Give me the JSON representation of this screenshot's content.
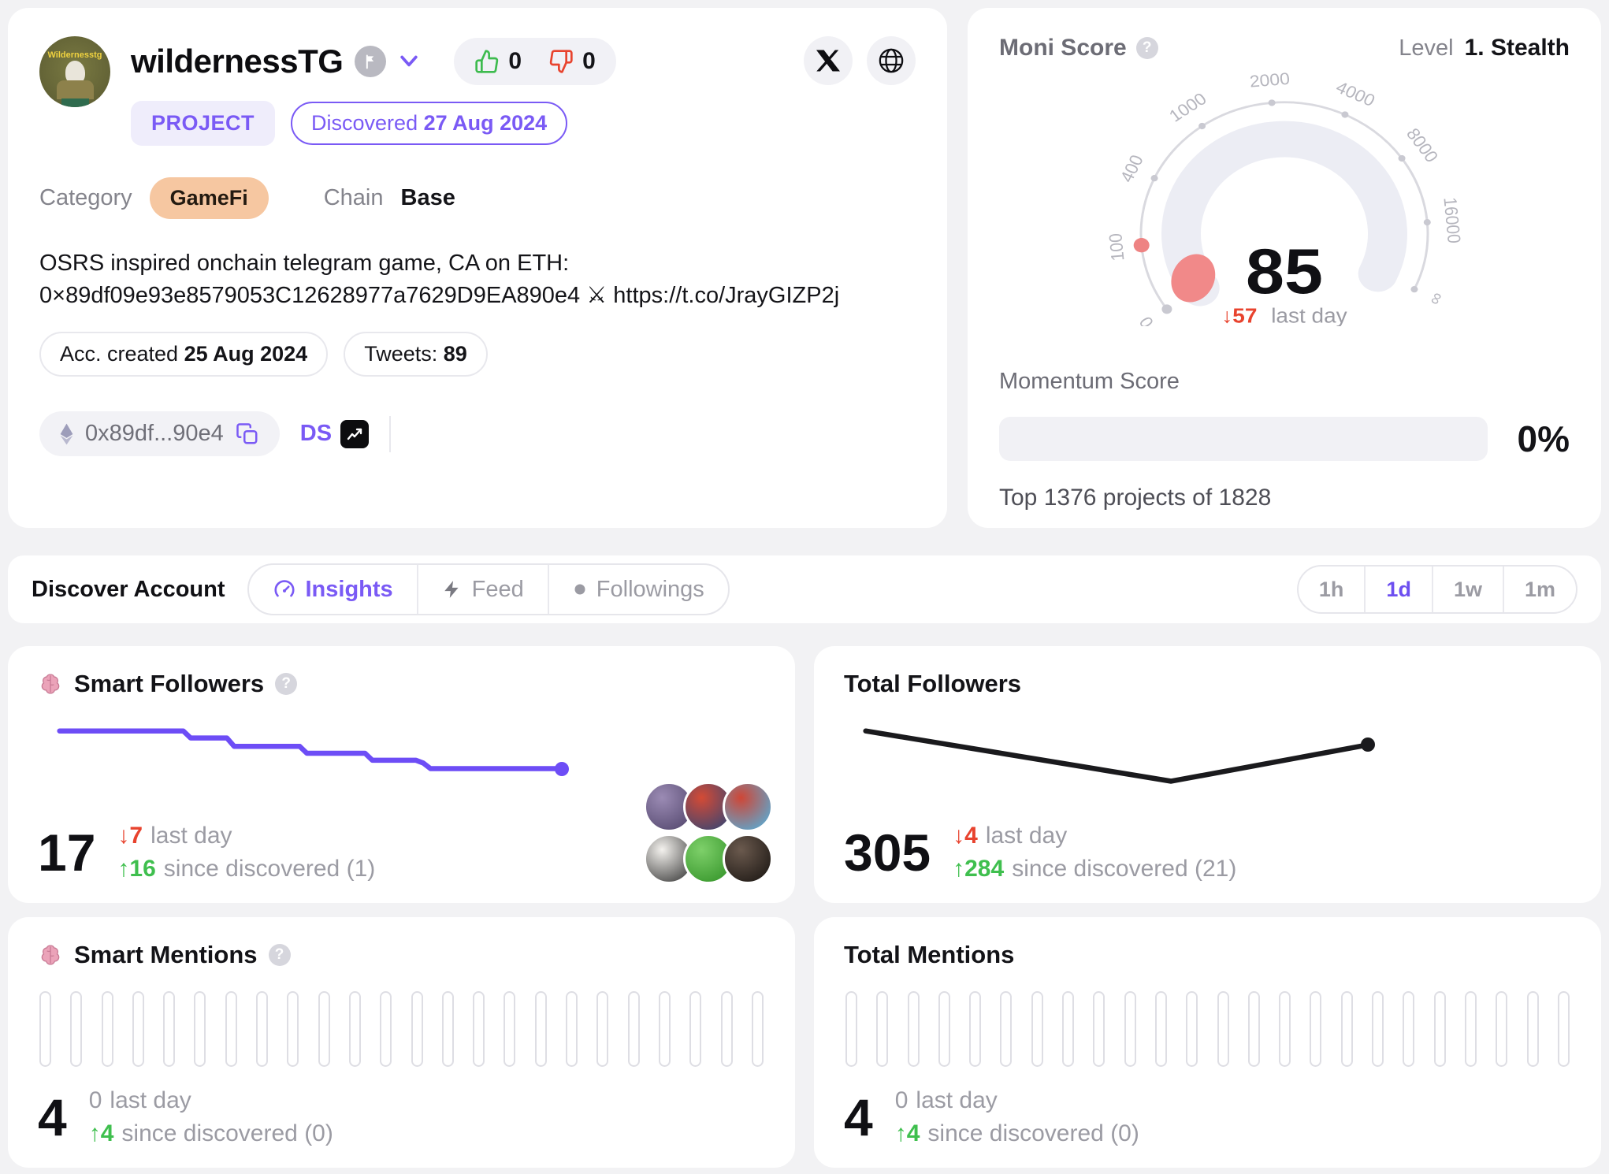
{
  "profile": {
    "name": "wildernessTG",
    "avatar_label": "Wildernesstg",
    "type_badge": "PROJECT",
    "discovered_label": "Discovered",
    "discovered_date": "27 Aug 2024",
    "upvotes": "0",
    "downvotes": "0",
    "category_label": "Category",
    "category_value": "GameFi",
    "chain_label": "Chain",
    "chain_value": "Base",
    "description": "OSRS inspired onchain telegram game, CA on ETH: 0×89df09e93e8579053C12628977a7629D9EA890e4 ⚔ https://t.co/JrayGIZP2j",
    "acc_created_label": "Acc. created",
    "acc_created_value": "25 Aug 2024",
    "tweets_label": "Tweets:",
    "tweets_value": "89",
    "address_short": "0x89df...90e4",
    "ds_label": "DS"
  },
  "moni": {
    "title": "Moni Score",
    "level_label": "Level",
    "level_value": "1. Stealth",
    "score": "85",
    "delta": "↓57",
    "delta_suffix": "last day",
    "gauge_ticks": [
      "0",
      "100",
      "400",
      "1000",
      "2000",
      "4000",
      "8000",
      "16000",
      "∞"
    ],
    "momentum_title": "Momentum Score",
    "momentum_value": "0%",
    "rank_text": "Top 1376 projects of 1828"
  },
  "toolbar": {
    "title": "Discover Account",
    "tabs": [
      {
        "label": "Insights",
        "active": true
      },
      {
        "label": "Feed",
        "active": false
      },
      {
        "label": "Followings",
        "active": false
      }
    ],
    "ranges": [
      {
        "label": "1h",
        "active": false
      },
      {
        "label": "1d",
        "active": true
      },
      {
        "label": "1w",
        "active": false
      },
      {
        "label": "1m",
        "active": false
      }
    ]
  },
  "cards": {
    "smart_followers": {
      "title": "Smart Followers",
      "value": "17",
      "delta_down": "↓7",
      "delta_down_suffix": "last day",
      "delta_up": "↑16",
      "delta_up_suffix": "since discovered (1)",
      "avatars": [
        [
          "#9b8bb4",
          "#4e4268"
        ],
        [
          "#d44a35",
          "#27457a"
        ],
        [
          "#cf4636",
          "#49b8e8"
        ],
        [
          "#f4f2ee",
          "#2e2e2e"
        ],
        [
          "#7ed06a",
          "#2e8f24"
        ],
        [
          "#6b5a4e",
          "#16120f"
        ]
      ]
    },
    "total_followers": {
      "title": "Total Followers",
      "value": "305",
      "delta_down": "↓4",
      "delta_down_suffix": "last day",
      "delta_up": "↑284",
      "delta_up_suffix": "since discovered (21)"
    },
    "smart_mentions": {
      "title": "Smart Mentions",
      "value": "4",
      "last_day": "0",
      "last_day_suffix": "last day",
      "delta_up": "↑4",
      "delta_up_suffix": "since discovered (0)"
    },
    "total_mentions": {
      "title": "Total Mentions",
      "value": "4",
      "last_day": "0",
      "last_day_suffix": "last day",
      "delta_up": "↑4",
      "delta_up_suffix": "since discovered (0)"
    }
  },
  "charts": {
    "smart_followers": {
      "type": "step-line",
      "color": "#6d4df6",
      "points": [
        [
          3,
          10
        ],
        [
          20,
          10
        ],
        [
          21,
          15
        ],
        [
          26,
          15
        ],
        [
          27,
          21
        ],
        [
          36,
          21
        ],
        [
          37,
          26
        ],
        [
          45,
          26
        ],
        [
          46,
          31
        ],
        [
          52,
          31
        ],
        [
          53,
          33
        ],
        [
          54,
          37
        ],
        [
          72,
          37
        ]
      ],
      "end_dot": true
    },
    "total_followers": {
      "type": "line",
      "color": "#1a1a1d",
      "points": [
        [
          3,
          10
        ],
        [
          45,
          46
        ],
        [
          72,
          20
        ]
      ],
      "end_dot": true
    },
    "smart_mentions": {
      "type": "empty-bars",
      "bar_count": 24
    },
    "total_mentions": {
      "type": "empty-bars",
      "bar_count": 24
    }
  },
  "colors": {
    "accent_purple": "#7a5af5",
    "negative_red": "#e8432e",
    "positive_green": "#3fbf4e",
    "gamefi_badge_bg": "#f6c7a1",
    "gauge_marker_red": "#ee8383",
    "gauge_track": "#ecedf4"
  },
  "icons": [
    "flag-icon",
    "chevron-down-icon",
    "thumbs-up-icon",
    "thumbs-down-icon",
    "x-icon",
    "globe-icon",
    "help-icon",
    "eth-icon",
    "copy-icon",
    "dexscreener-icon",
    "brain-icon",
    "speedometer-icon",
    "bolt-icon",
    "dot-icon"
  ]
}
